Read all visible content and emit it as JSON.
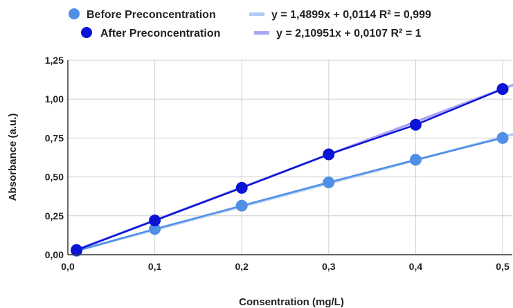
{
  "chart_data": {
    "type": "scatter",
    "title": "",
    "xlabel": "Consentration (mg/L)",
    "ylabel": "Absorbance (a.u.)",
    "xlim": [
      0.0,
      0.5
    ],
    "ylim": [
      0.0,
      1.25
    ],
    "x_ticks": [
      "0,0",
      "0,1",
      "0,2",
      "0,3",
      "0,4",
      "0,5"
    ],
    "y_ticks": [
      "0,00",
      "0,25",
      "0,50",
      "0,75",
      "1,00",
      "1,25"
    ],
    "grid": true,
    "legend_position": "top",
    "series": [
      {
        "name": "Before Preconcentration",
        "color": "#4f8fe6",
        "x": [
          0.01,
          0.1,
          0.2,
          0.3,
          0.4,
          0.5
        ],
        "y": [
          0.025,
          0.165,
          0.315,
          0.465,
          0.61,
          0.75
        ],
        "trendline": {
          "label": "y = 1,4899x + 0,0114 R² = 0,999",
          "slope": 1.4899,
          "intercept": 0.0114,
          "color": "#aecbf5"
        }
      },
      {
        "name": "After Preconcentration",
        "color": "#0a13d6",
        "x": [
          0.01,
          0.1,
          0.2,
          0.3,
          0.4,
          0.5
        ],
        "y": [
          0.03,
          0.22,
          0.43,
          0.645,
          0.835,
          1.065
        ],
        "trendline": {
          "label": "y = 2,10951x + 0,0107 R² = 1",
          "slope": 2.10951,
          "intercept": 0.0107,
          "color": "#a9a5f2"
        }
      }
    ]
  }
}
